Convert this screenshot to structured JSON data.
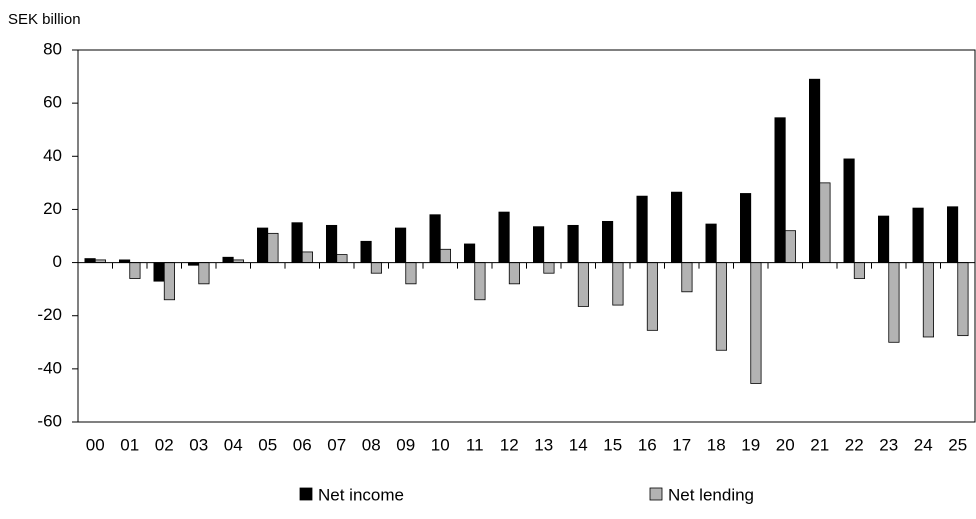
{
  "chart_data": {
    "type": "bar",
    "y_axis_label": "SEK billion",
    "categories": [
      "00",
      "01",
      "02",
      "03",
      "04",
      "05",
      "06",
      "07",
      "08",
      "09",
      "10",
      "11",
      "12",
      "13",
      "14",
      "15",
      "16",
      "17",
      "18",
      "19",
      "20",
      "21",
      "22",
      "23",
      "24",
      "25"
    ],
    "series": [
      {
        "name": "Net income",
        "color": "#000000",
        "values": [
          1.5,
          1,
          -7,
          -1,
          2,
          13,
          15,
          14,
          8,
          13,
          18,
          7,
          19,
          13.5,
          14,
          15.5,
          25,
          26.5,
          14.5,
          26,
          54.5,
          69,
          39,
          17.5,
          20.5,
          21
        ]
      },
      {
        "name": "Net lending",
        "color": "#b3b3b3",
        "values": [
          1,
          -6,
          -14,
          -8,
          1,
          11,
          4,
          3,
          -4,
          -8,
          5,
          -14,
          -8,
          -4,
          -16.5,
          -16,
          -25.5,
          -11,
          -33,
          -45.5,
          12,
          30,
          -6,
          -30,
          -28,
          -27.5
        ]
      }
    ],
    "ylim": [
      -60,
      80
    ],
    "yticks": [
      -60,
      -40,
      -20,
      0,
      20,
      40,
      60,
      80
    ],
    "grid": false,
    "legend": "bottom"
  }
}
